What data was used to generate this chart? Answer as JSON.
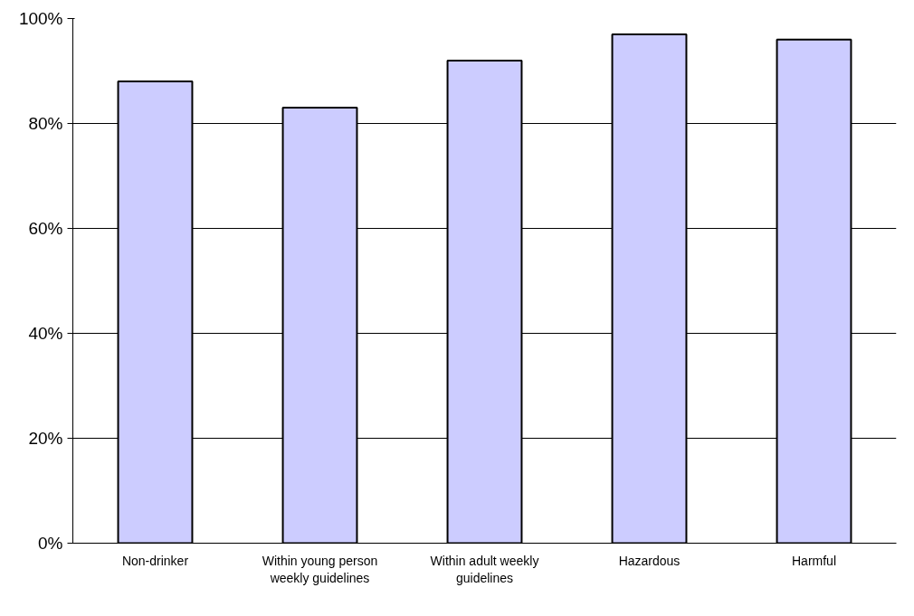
{
  "chart_data": {
    "type": "bar",
    "categories": [
      "Non-drinker",
      "Within young person weekly guidelines",
      "Within adult weekly guidelines",
      "Hazardous",
      "Harmful"
    ],
    "values": [
      88,
      83,
      92,
      97,
      96
    ],
    "color": "#ccccff",
    "ylim": [
      0,
      100
    ],
    "yticks": [
      {
        "value": 0,
        "label": "0%"
      },
      {
        "value": 20,
        "label": "20%"
      },
      {
        "value": 40,
        "label": "40%"
      },
      {
        "value": 60,
        "label": "60%"
      },
      {
        "value": 80,
        "label": "80%"
      },
      {
        "value": 100,
        "label": "100%"
      }
    ],
    "grid": "y"
  }
}
